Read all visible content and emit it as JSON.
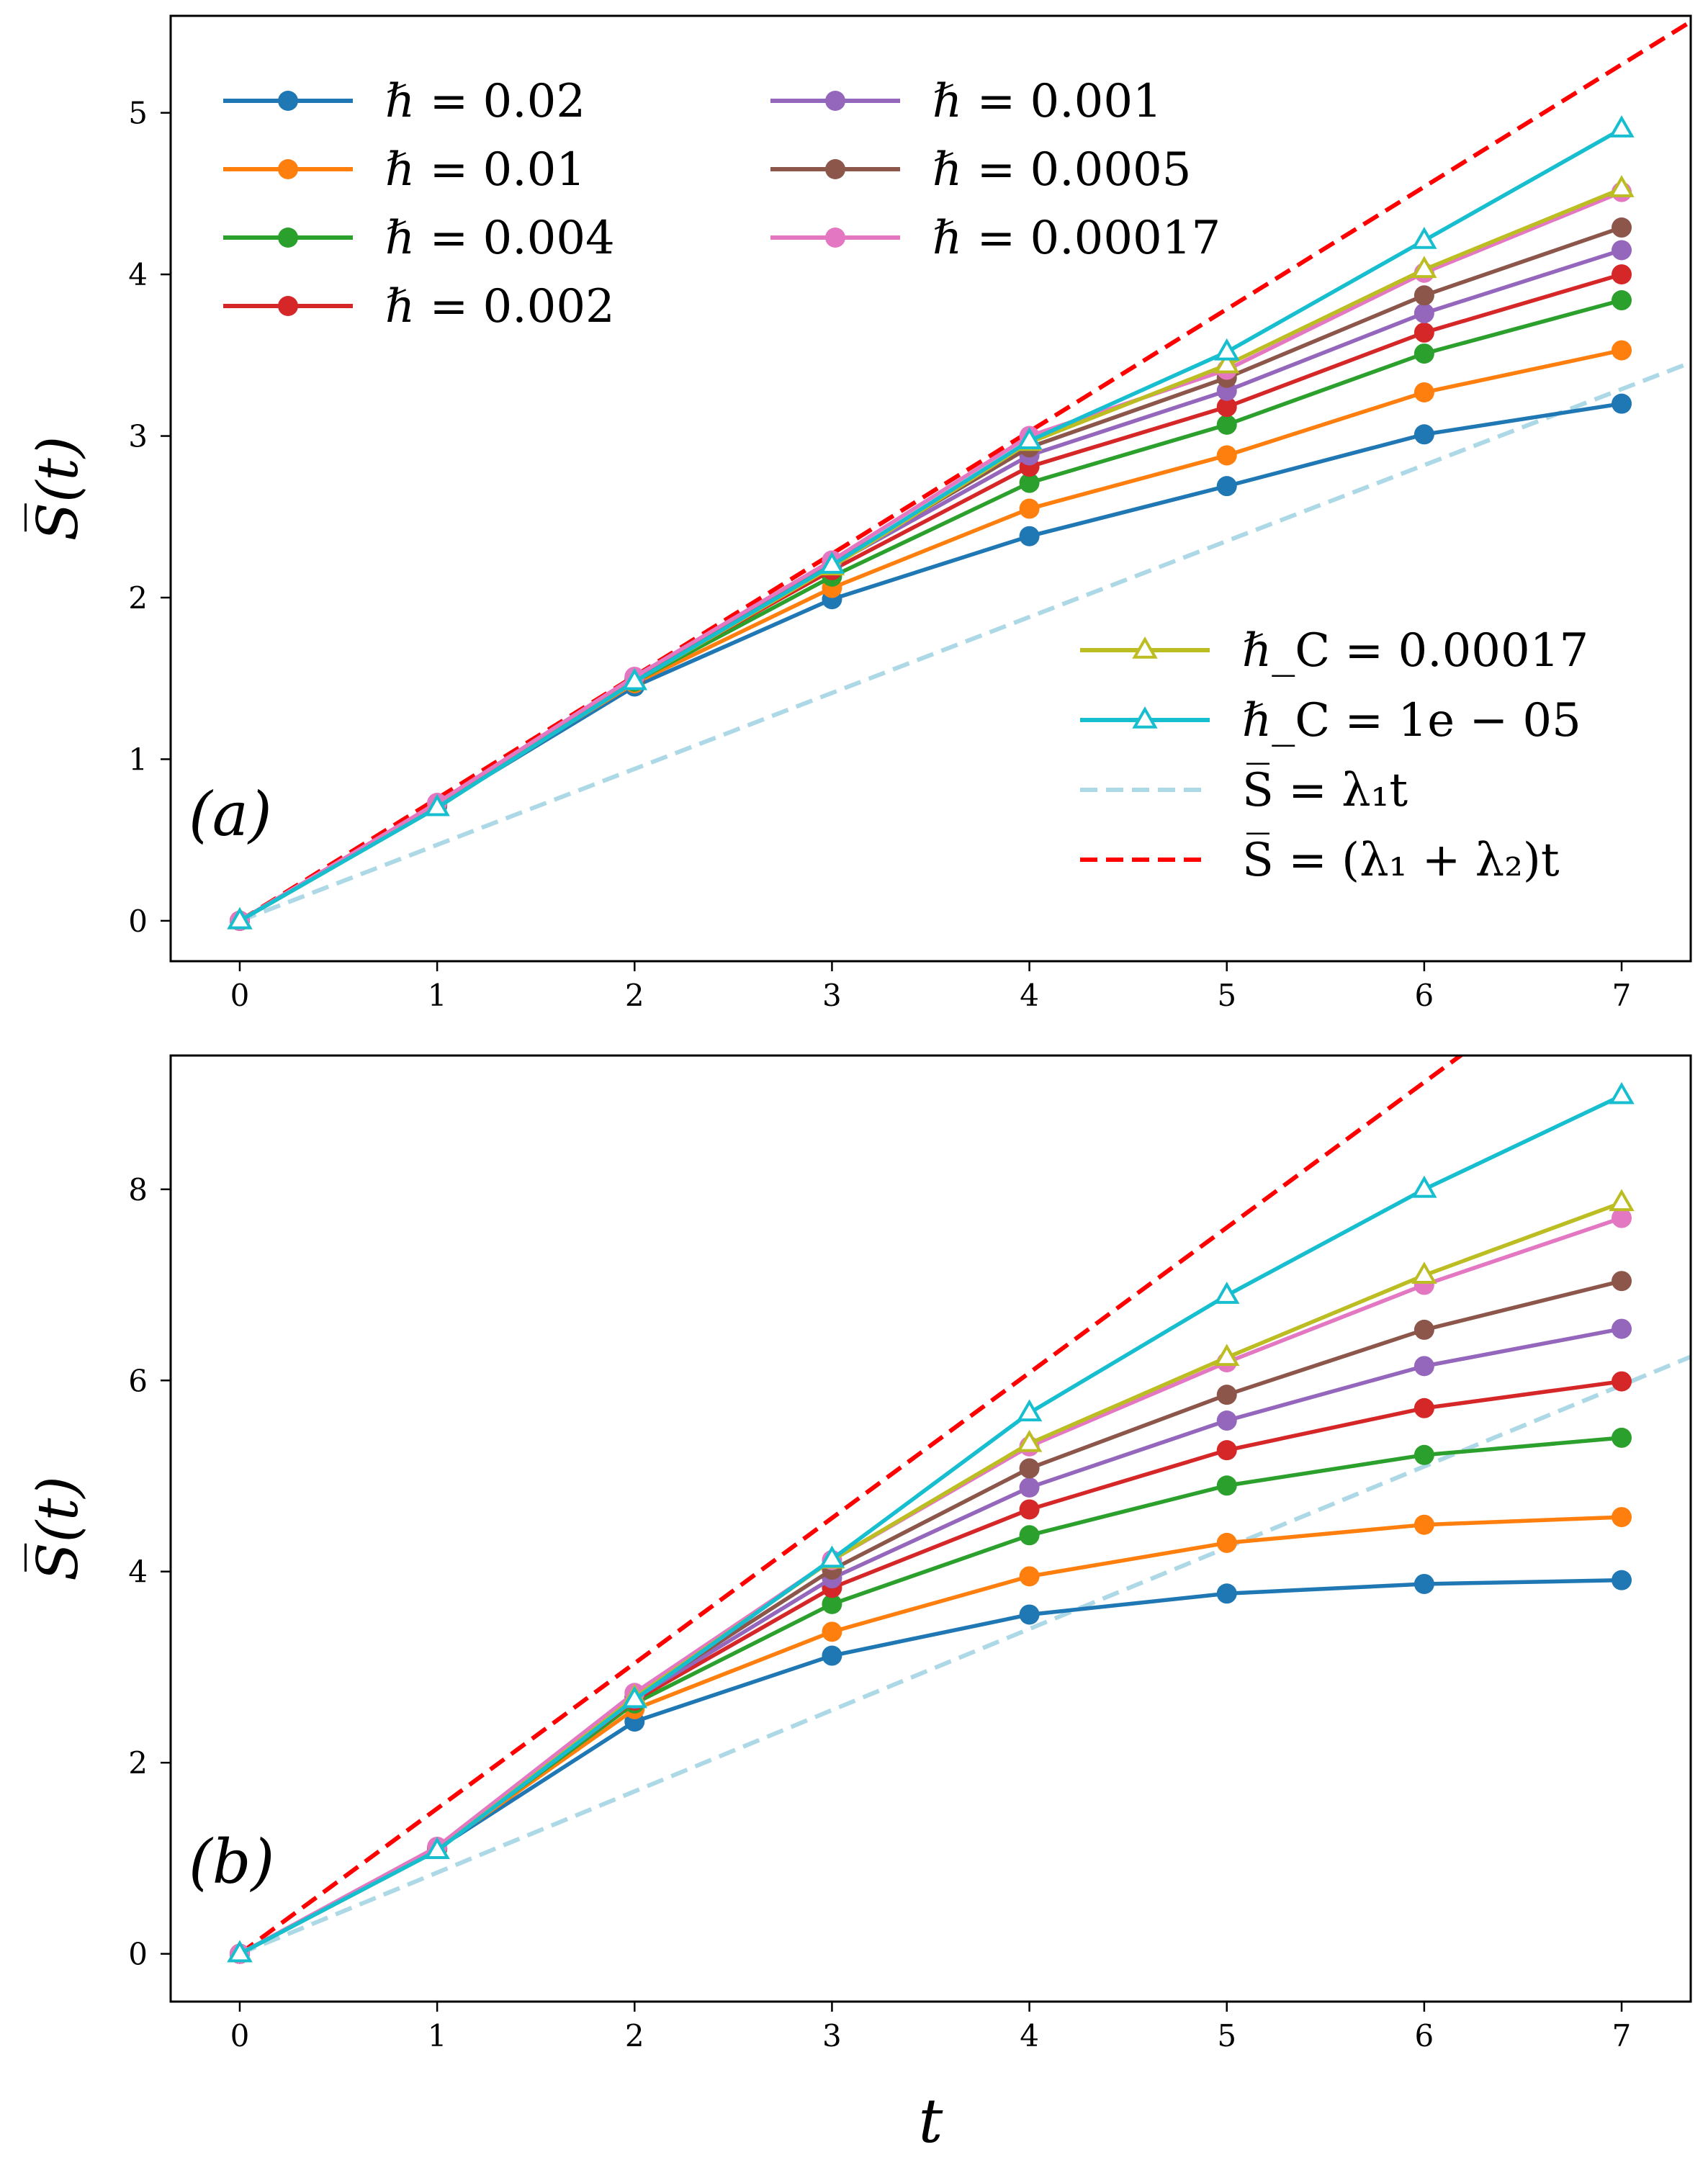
{
  "figure": {
    "xlabel": "t",
    "ylabel": "S̅(t)"
  },
  "chart_data": [
    {
      "type": "line",
      "panel_label": "(a)",
      "xlabel": "",
      "ylabel": "S̅(t)",
      "x": [
        0,
        1,
        2,
        3,
        4,
        5,
        6,
        7
      ],
      "xlim": [
        -0.35,
        7.35
      ],
      "ylim": [
        -0.25,
        5.6
      ],
      "yticks": [
        0,
        1,
        2,
        3,
        4,
        5
      ],
      "legend_main_position": "upper-left",
      "legend_extra_position": "lower-right",
      "series": [
        {
          "name": "ℏ = 0.02",
          "color": "#1f77b4",
          "marker": "circle",
          "values": [
            0,
            0.71,
            1.45,
            1.99,
            2.38,
            2.69,
            3.01,
            3.2
          ]
        },
        {
          "name": "ℏ = 0.01",
          "color": "#ff7f0e",
          "marker": "circle",
          "values": [
            0,
            0.72,
            1.47,
            2.06,
            2.55,
            2.88,
            3.27,
            3.53
          ]
        },
        {
          "name": "ℏ = 0.004",
          "color": "#2ca02c",
          "marker": "circle",
          "values": [
            0,
            0.72,
            1.48,
            2.13,
            2.71,
            3.07,
            3.51,
            3.84
          ]
        },
        {
          "name": "ℏ = 0.002",
          "color": "#d62728",
          "marker": "circle",
          "values": [
            0,
            0.72,
            1.49,
            2.17,
            2.81,
            3.18,
            3.64,
            4.0
          ]
        },
        {
          "name": "ℏ = 0.001",
          "color": "#9467bd",
          "marker": "circle",
          "values": [
            0,
            0.72,
            1.5,
            2.2,
            2.88,
            3.28,
            3.76,
            4.15
          ]
        },
        {
          "name": "ℏ = 0.0005",
          "color": "#8c564b",
          "marker": "circle",
          "values": [
            0,
            0.72,
            1.5,
            2.21,
            2.93,
            3.36,
            3.87,
            4.29
          ]
        },
        {
          "name": "ℏ = 0.00017",
          "color": "#e377c2",
          "marker": "circle",
          "values": [
            0,
            0.73,
            1.51,
            2.23,
            3.0,
            3.41,
            4.01,
            4.51
          ]
        },
        {
          "name": "ℏ_C = 0.00017",
          "color": "#bcbd22",
          "marker": "triangle",
          "values": [
            0,
            0.7,
            1.48,
            2.19,
            2.96,
            3.44,
            4.03,
            4.53
          ]
        },
        {
          "name": "ℏ_C = 1e − 05",
          "color": "#17becf",
          "marker": "triangle",
          "values": [
            0,
            0.7,
            1.48,
            2.2,
            2.97,
            3.52,
            4.21,
            4.9
          ]
        }
      ],
      "reference_lines": [
        {
          "name": "S̅ = λ₁t",
          "color": "#add8e6",
          "slope": 0.47
        },
        {
          "name": "S̅ = (λ₁ + λ₂)t",
          "color": "#ff0000",
          "slope": 0.757
        }
      ]
    },
    {
      "type": "line",
      "panel_label": "(b)",
      "xlabel": "t",
      "ylabel": "S̅(t)",
      "x": [
        0,
        1,
        2,
        3,
        4,
        5,
        6,
        7
      ],
      "xlim": [
        -0.35,
        7.35
      ],
      "ylim": [
        -0.5,
        9.4
      ],
      "yticks": [
        0,
        2,
        4,
        6,
        8
      ],
      "series": [
        {
          "name": "ℏ = 0.02",
          "color": "#1f77b4",
          "marker": "circle",
          "values": [
            0,
            1.1,
            2.43,
            3.12,
            3.55,
            3.77,
            3.87,
            3.91
          ]
        },
        {
          "name": "ℏ = 0.01",
          "color": "#ff7f0e",
          "marker": "circle",
          "values": [
            0,
            1.1,
            2.56,
            3.37,
            3.95,
            4.3,
            4.49,
            4.57
          ]
        },
        {
          "name": "ℏ = 0.004",
          "color": "#2ca02c",
          "marker": "circle",
          "values": [
            0,
            1.1,
            2.62,
            3.66,
            4.38,
            4.9,
            5.22,
            5.4
          ]
        },
        {
          "name": "ℏ = 0.002",
          "color": "#d62728",
          "marker": "circle",
          "values": [
            0,
            1.1,
            2.65,
            3.83,
            4.65,
            5.27,
            5.71,
            5.99
          ]
        },
        {
          "name": "ℏ = 0.001",
          "color": "#9467bd",
          "marker": "circle",
          "values": [
            0,
            1.1,
            2.67,
            3.93,
            4.88,
            5.58,
            6.15,
            6.54
          ]
        },
        {
          "name": "ℏ = 0.0005",
          "color": "#8c564b",
          "marker": "circle",
          "values": [
            0,
            1.1,
            2.69,
            4.02,
            5.08,
            5.85,
            6.53,
            7.04
          ]
        },
        {
          "name": "ℏ = 0.00017",
          "color": "#e377c2",
          "marker": "circle",
          "values": [
            0,
            1.12,
            2.73,
            4.12,
            5.31,
            6.19,
            7.0,
            7.7
          ]
        },
        {
          "name": "ℏ_C = 0.00017",
          "color": "#bcbd22",
          "marker": "triangle",
          "values": [
            0,
            1.08,
            2.68,
            4.12,
            5.34,
            6.24,
            7.1,
            7.86
          ]
        },
        {
          "name": "ℏ_C = 1e − 05",
          "color": "#17becf",
          "marker": "triangle",
          "values": [
            0,
            1.08,
            2.66,
            4.13,
            5.66,
            6.89,
            8.0,
            8.98
          ]
        }
      ],
      "reference_lines": [
        {
          "name": "S̅ = λ₁t",
          "color": "#add8e6",
          "slope": 0.85
        },
        {
          "name": "S̅ = (λ₁ + λ₂)t",
          "color": "#ff0000",
          "slope": 1.52
        }
      ]
    }
  ]
}
